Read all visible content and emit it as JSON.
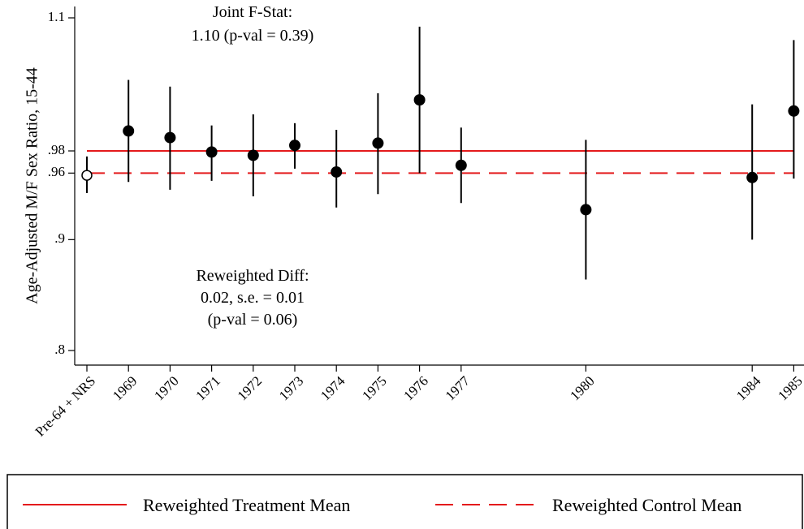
{
  "chart_data": {
    "type": "scatter",
    "ylabel": "Age-Adjusted M/F Sex Ratio, 15-44",
    "xlabel": "",
    "categories": [
      "Pre-64 + NRS",
      "1969",
      "1970",
      "1971",
      "1972",
      "1973",
      "1974",
      "1975",
      "1976",
      "1977",
      "1980",
      "1984",
      "1985"
    ],
    "x_positions": [
      0,
      1,
      2,
      3,
      4,
      5,
      6,
      7,
      8,
      9,
      12,
      16,
      17
    ],
    "yticks": [
      {
        "value": 0.8,
        "label": ".8"
      },
      {
        "value": 0.9,
        "label": ".9"
      },
      {
        "value": 0.96,
        "label": ".96"
      },
      {
        "value": 0.98,
        "label": ".98"
      },
      {
        "value": 1.1,
        "label": "1.1"
      }
    ],
    "ylim": [
      0.79,
      1.11
    ],
    "points": [
      {
        "x": 0,
        "y": 0.958,
        "lo": 0.942,
        "hi": 0.975,
        "hollow": true
      },
      {
        "x": 1,
        "y": 0.998,
        "lo": 0.952,
        "hi": 1.044,
        "hollow": false
      },
      {
        "x": 2,
        "y": 0.992,
        "lo": 0.945,
        "hi": 1.038,
        "hollow": false
      },
      {
        "x": 3,
        "y": 0.979,
        "lo": 0.953,
        "hi": 1.003,
        "hollow": false
      },
      {
        "x": 4,
        "y": 0.976,
        "lo": 0.939,
        "hi": 1.013,
        "hollow": false
      },
      {
        "x": 5,
        "y": 0.985,
        "lo": 0.964,
        "hi": 1.005,
        "hollow": false
      },
      {
        "x": 6,
        "y": 0.961,
        "lo": 0.929,
        "hi": 0.999,
        "hollow": false
      },
      {
        "x": 7,
        "y": 0.987,
        "lo": 0.941,
        "hi": 1.032,
        "hollow": false
      },
      {
        "x": 8,
        "y": 1.026,
        "lo": 0.96,
        "hi": 1.092,
        "hollow": false
      },
      {
        "x": 9,
        "y": 0.967,
        "lo": 0.933,
        "hi": 1.001,
        "hollow": false
      },
      {
        "x": 12,
        "y": 0.927,
        "lo": 0.864,
        "hi": 0.99,
        "hollow": false
      },
      {
        "x": 16,
        "y": 0.956,
        "lo": 0.9,
        "hi": 1.022,
        "hollow": false
      },
      {
        "x": 17,
        "y": 1.016,
        "lo": 0.955,
        "hi": 1.08,
        "hollow": false
      }
    ],
    "reference_lines": [
      {
        "name": "Reweighted Treatment Mean",
        "value": 0.98,
        "style": "solid",
        "color": "#e41a1c"
      },
      {
        "name": "Reweighted Control Mean",
        "value": 0.96,
        "style": "dashed",
        "color": "#e41a1c"
      }
    ],
    "annotations": {
      "fstat": [
        "Joint F-Stat:",
        "1.10 (p-val = 0.39)"
      ],
      "diff": [
        "Reweighted Diff:",
        "0.02, s.e. = 0.01",
        "(p-val = 0.06)"
      ]
    },
    "legend": {
      "placement": "bottom",
      "entries": [
        {
          "label": "Reweighted Treatment Mean",
          "style": "solid",
          "color": "#e41a1c"
        },
        {
          "label": "Reweighted Control Mean",
          "style": "dashed",
          "color": "#e41a1c"
        }
      ]
    },
    "grid": false
  }
}
